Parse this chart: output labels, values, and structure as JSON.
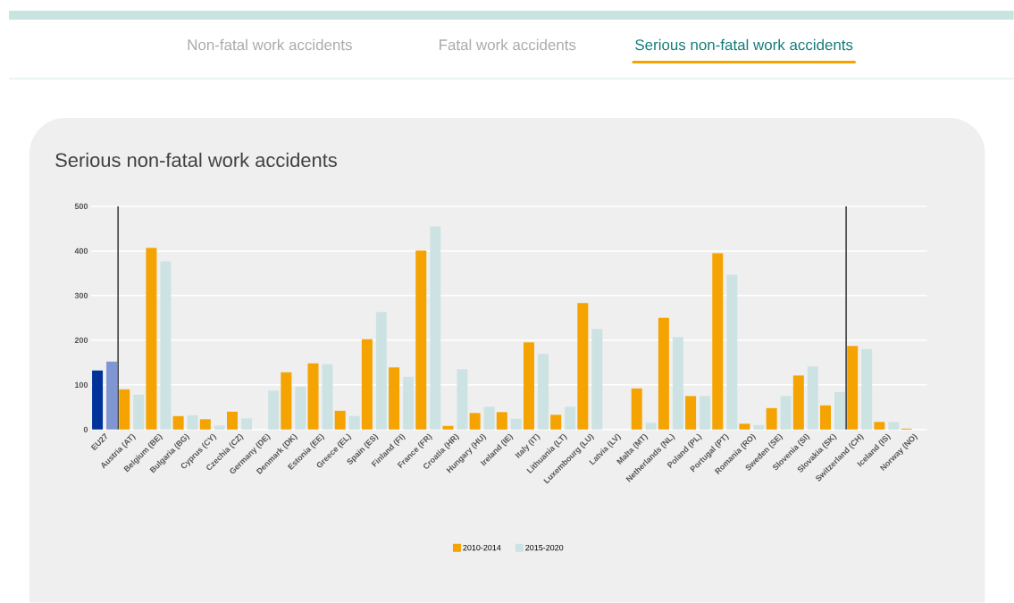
{
  "chart_data": {
    "type": "bar",
    "title": "Serious non-fatal work accidents",
    "annotations": [
      "Non-fatal work accidents",
      "Fatal work accidents",
      "Serious non-fatal work accidents"
    ],
    "categories": [
      "EU27",
      "Austria (AT)",
      "Belgium (BE)",
      "Bulgaria (BG)",
      "Cyprus (CY)",
      "Czechia (CZ)",
      "Germany (DE)",
      "Denmark (DK)",
      "Estonia (EE)",
      "Greece (EL)",
      "Spain (ES)",
      "Finland (FI)",
      "France (FR)",
      "Croatia (HR)",
      "Hungary (HU)",
      "Ireland (IE)",
      "Italy (IT)",
      "Lithuania (LT)",
      "Luxembourg (LU)",
      "Latvia (LV)",
      "Malta (MT)",
      "Netherlands (NL)",
      "Poland (PL)",
      "Portugal (PT)",
      "Romania (RO)",
      "Sweden (SE)",
      "Slovenia (SI)",
      "Slovakia (SK)",
      "Switzerland (CH)",
      "Iceland (IS)",
      "Norway (NO)"
    ],
    "series": [
      {
        "name": "2010-2014",
        "color": "#f5a300",
        "colors": [
          "#003399",
          "#f5a300",
          "#f5a300",
          "#f5a300",
          "#f5a300",
          "#f5a300",
          "#f5a300",
          "#f5a300",
          "#f5a300",
          "#f5a300",
          "#f5a300",
          "#f5a300",
          "#f5a300",
          "#f5a300",
          "#f5a300",
          "#f5a300",
          "#f5a300",
          "#f5a300",
          "#f5a300",
          "#f5a300",
          "#f5a300",
          "#f5a300",
          "#f5a300",
          "#f5a300",
          "#f5a300",
          "#f5a300",
          "#f5a300",
          "#f5a300",
          "#f5a300",
          "#f5a300",
          "#f5a300"
        ],
        "values": [
          132,
          90,
          407,
          30,
          23,
          40,
          null,
          128,
          148,
          42,
          202,
          139,
          401,
          8,
          37,
          39,
          195,
          33,
          283,
          null,
          92,
          250,
          75,
          395,
          13,
          48,
          121,
          54,
          187,
          17,
          2
        ]
      },
      {
        "name": "2015-2020",
        "color": "#cde3e3",
        "colors": [
          "#8096d2",
          "#cde3e3",
          "#cde3e3",
          "#cde3e3",
          "#cde3e3",
          "#cde3e3",
          "#cde3e3",
          "#cde3e3",
          "#cde3e3",
          "#cde3e3",
          "#cde3e3",
          "#cde3e3",
          "#cde3e3",
          "#cde3e3",
          "#cde3e3",
          "#cde3e3",
          "#cde3e3",
          "#cde3e3",
          "#cde3e3",
          "#cde3e3",
          "#cde3e3",
          "#cde3e3",
          "#cde3e3",
          "#cde3e3",
          "#cde3e3",
          "#cde3e3",
          "#cde3e3",
          "#cde3e3",
          "#cde3e3",
          "#cde3e3",
          "#cde3e3"
        ],
        "values": [
          152,
          78,
          377,
          32,
          9,
          25,
          87,
          96,
          146,
          30,
          263,
          118,
          455,
          135,
          51,
          24,
          169,
          51,
          225,
          null,
          15,
          207,
          75,
          347,
          10,
          75,
          141,
          84,
          180,
          17,
          null
        ]
      }
    ],
    "ylim": [
      0,
      500
    ],
    "yticks": [
      0,
      100,
      200,
      300,
      400,
      500
    ],
    "grid": "y",
    "legend": "bottom"
  }
}
